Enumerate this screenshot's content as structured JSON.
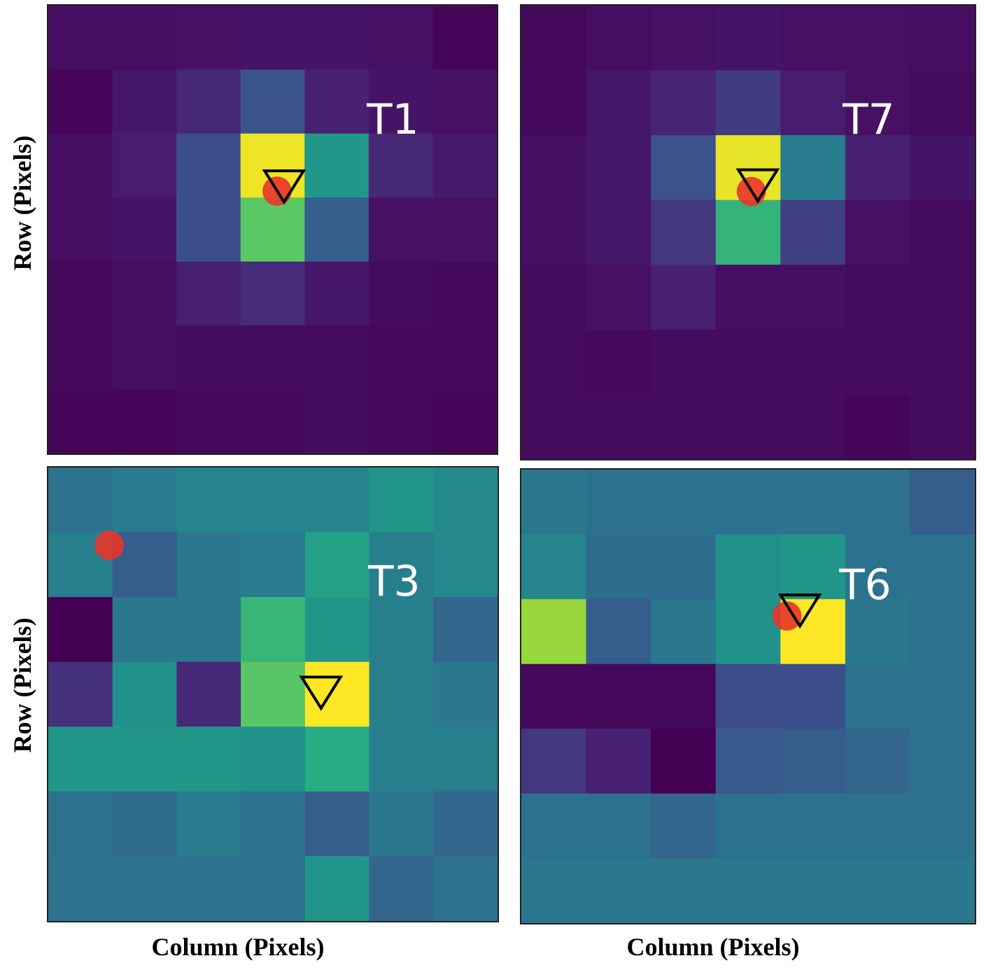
{
  "figure": {
    "ylabel_top": "Row (Pixels)",
    "ylabel_bottom": "Row (Pixels)",
    "xlabel_left": "Column (Pixels)",
    "xlabel_right": "Column (Pixels)"
  },
  "chart_data": [
    {
      "type": "heatmap",
      "label": "T1",
      "colormap": "viridis",
      "rows": 7,
      "cols": 7,
      "values": [
        [
          0.05,
          0.05,
          0.06,
          0.07,
          0.07,
          0.06,
          0.02
        ],
        [
          0.02,
          0.08,
          0.14,
          0.26,
          0.12,
          0.07,
          0.06
        ],
        [
          0.05,
          0.1,
          0.24,
          0.98,
          0.53,
          0.14,
          0.09
        ],
        [
          0.05,
          0.07,
          0.24,
          0.75,
          0.3,
          0.06,
          0.06
        ],
        [
          0.03,
          0.05,
          0.11,
          0.15,
          0.08,
          0.04,
          0.03
        ],
        [
          0.03,
          0.05,
          0.04,
          0.04,
          0.04,
          0.03,
          0.03
        ],
        [
          0.02,
          0.02,
          0.03,
          0.03,
          0.04,
          0.03,
          0.02
        ]
      ],
      "markers": [
        {
          "shape": "circle",
          "color": "#e8352a",
          "col": 3.57,
          "row": 2.9
        },
        {
          "shape": "triangle-down",
          "color": "#000000",
          "col": 3.68,
          "row": 2.75
        }
      ]
    },
    {
      "type": "heatmap",
      "label": "T7",
      "colormap": "viridis",
      "rows": 7,
      "cols": 7,
      "values": [
        [
          0.03,
          0.05,
          0.06,
          0.07,
          0.06,
          0.06,
          0.05
        ],
        [
          0.03,
          0.08,
          0.13,
          0.19,
          0.1,
          0.06,
          0.04
        ],
        [
          0.05,
          0.08,
          0.25,
          0.97,
          0.42,
          0.12,
          0.07
        ],
        [
          0.05,
          0.08,
          0.18,
          0.66,
          0.2,
          0.06,
          0.04
        ],
        [
          0.04,
          0.06,
          0.12,
          0.05,
          0.05,
          0.04,
          0.04
        ],
        [
          0.04,
          0.03,
          0.04,
          0.04,
          0.04,
          0.04,
          0.04
        ],
        [
          0.04,
          0.04,
          0.04,
          0.04,
          0.04,
          0.02,
          0.04
        ]
      ],
      "markers": [
        {
          "shape": "circle",
          "color": "#e8352a",
          "col": 3.55,
          "row": 2.87
        },
        {
          "shape": "triangle-down",
          "color": "#000000",
          "col": 3.65,
          "row": 2.7
        }
      ]
    },
    {
      "type": "heatmap",
      "label": "T3",
      "colormap": "viridis",
      "rows": 7,
      "cols": 7,
      "values": [
        [
          0.38,
          0.42,
          0.45,
          0.45,
          0.45,
          0.52,
          0.47
        ],
        [
          0.43,
          0.3,
          0.4,
          0.42,
          0.57,
          0.43,
          0.47
        ],
        [
          0.0,
          0.4,
          0.4,
          0.67,
          0.53,
          0.43,
          0.33
        ],
        [
          0.16,
          0.5,
          0.14,
          0.74,
          1.0,
          0.43,
          0.4
        ],
        [
          0.53,
          0.53,
          0.53,
          0.5,
          0.62,
          0.43,
          0.43
        ],
        [
          0.37,
          0.35,
          0.42,
          0.38,
          0.3,
          0.4,
          0.33
        ],
        [
          0.38,
          0.38,
          0.38,
          0.38,
          0.52,
          0.33,
          0.38
        ]
      ],
      "markers": [
        {
          "shape": "circle",
          "color": "#e8352a",
          "col": 0.95,
          "row": 1.2
        },
        {
          "shape": "triangle-down",
          "color": "#000000",
          "col": 4.25,
          "row": 3.4
        }
      ]
    },
    {
      "type": "heatmap",
      "label": "T6",
      "colormap": "viridis",
      "rows": 7,
      "cols": 7,
      "values": [
        [
          0.4,
          0.38,
          0.38,
          0.38,
          0.38,
          0.38,
          0.3
        ],
        [
          0.45,
          0.36,
          0.36,
          0.5,
          0.52,
          0.38,
          0.38
        ],
        [
          0.85,
          0.3,
          0.4,
          0.5,
          1.0,
          0.4,
          0.38
        ],
        [
          0.03,
          0.03,
          0.03,
          0.24,
          0.24,
          0.38,
          0.38
        ],
        [
          0.18,
          0.12,
          0.0,
          0.28,
          0.3,
          0.33,
          0.38
        ],
        [
          0.38,
          0.38,
          0.33,
          0.38,
          0.38,
          0.38,
          0.38
        ],
        [
          0.4,
          0.4,
          0.4,
          0.4,
          0.4,
          0.4,
          0.4
        ]
      ],
      "markers": [
        {
          "shape": "circle",
          "color": "#e8352a",
          "col": 4.1,
          "row": 2.26
        },
        {
          "shape": "triangle-down",
          "color": "#000000",
          "col": 4.3,
          "row": 2.1
        }
      ]
    }
  ]
}
